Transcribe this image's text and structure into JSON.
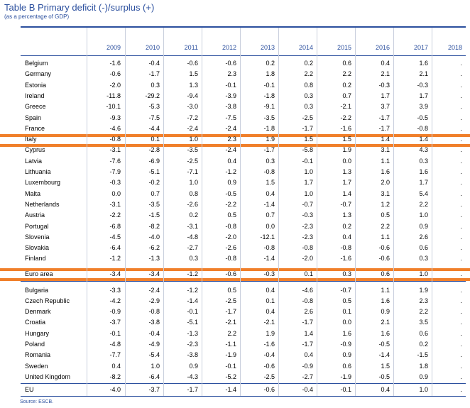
{
  "title": "Table B Primary deficit (-)/surplus (+)",
  "subtitle": "(as a percentage of GDP)",
  "source": "Source: ESCB.",
  "columns": [
    "2009",
    "2010",
    "2011",
    "2012",
    "2013",
    "2014",
    "2015",
    "2016",
    "2017",
    "2018"
  ],
  "groups": [
    {
      "rows": [
        {
          "label": "Belgium",
          "values": [
            "-1.6",
            "-0.4",
            "-0.6",
            "-0.6",
            "0.2",
            "0.2",
            "0.6",
            "0.4",
            "1.6",
            "."
          ]
        },
        {
          "label": "Germany",
          "values": [
            "-0.6",
            "-1.7",
            "1.5",
            "2.3",
            "1.8",
            "2.2",
            "2.2",
            "2.1",
            "2.1",
            "."
          ]
        },
        {
          "label": "Estonia",
          "values": [
            "-2.0",
            "0.3",
            "1.3",
            "-0.1",
            "-0.1",
            "0.8",
            "0.2",
            "-0.3",
            "-0.3",
            "."
          ]
        },
        {
          "label": "Ireland",
          "values": [
            "-11.8",
            "-29.2",
            "-9.4",
            "-3.9",
            "-1.8",
            "0.3",
            "0.7",
            "1.7",
            "1.7",
            "."
          ]
        },
        {
          "label": "Greece",
          "values": [
            "-10.1",
            "-5.3",
            "-3.0",
            "-3.8",
            "-9.1",
            "0.3",
            "-2.1",
            "3.7",
            "3.9",
            "."
          ]
        },
        {
          "label": "Spain",
          "values": [
            "-9.3",
            "-7.5",
            "-7.2",
            "-7.5",
            "-3.5",
            "-2.5",
            "-2.2",
            "-1.7",
            "-0.5",
            "."
          ]
        },
        {
          "label": "France",
          "values": [
            "-4.6",
            "-4.4",
            "-2.4",
            "-2.4",
            "-1.8",
            "-1.7",
            "-1.6",
            "-1.7",
            "-0.8",
            "."
          ]
        },
        {
          "label": "Italy",
          "highlight": true,
          "values": [
            "-0.8",
            "0.1",
            "1.0",
            "2.3",
            "1.9",
            "1.5",
            "1.5",
            "1.4",
            "1.4",
            "."
          ]
        },
        {
          "label": "Cyprus",
          "values": [
            "-3.1",
            "-2.8",
            "-3.5",
            "-2.4",
            "-1.7",
            "-5.8",
            "1.9",
            "3.1",
            "4.3",
            "."
          ]
        },
        {
          "label": "Latvia",
          "values": [
            "-7.6",
            "-6.9",
            "-2.5",
            "0.4",
            "0.3",
            "-0.1",
            "0.0",
            "1.1",
            "0.3",
            "."
          ]
        },
        {
          "label": "Lithuania",
          "values": [
            "-7.9",
            "-5.1",
            "-7.1",
            "-1.2",
            "-0.8",
            "1.0",
            "1.3",
            "1.6",
            "1.6",
            "."
          ]
        },
        {
          "label": "Luxembourg",
          "values": [
            "-0.3",
            "-0.2",
            "1.0",
            "0.9",
            "1.5",
            "1.7",
            "1.7",
            "2.0",
            "1.7",
            "."
          ]
        },
        {
          "label": "Malta",
          "values": [
            "0.0",
            "0.7",
            "0.8",
            "-0.5",
            "0.4",
            "1.0",
            "1.4",
            "3.1",
            "5.4",
            "."
          ]
        },
        {
          "label": "Netherlands",
          "values": [
            "-3.1",
            "-3.5",
            "-2.6",
            "-2.2",
            "-1.4",
            "-0.7",
            "-0.7",
            "1.2",
            "2.2",
            "."
          ]
        },
        {
          "label": "Austria",
          "values": [
            "-2.2",
            "-1.5",
            "0.2",
            "0.5",
            "0.7",
            "-0.3",
            "1.3",
            "0.5",
            "1.0",
            "."
          ]
        },
        {
          "label": "Portugal",
          "values": [
            "-6.8",
            "-8.2",
            "-3.1",
            "-0.8",
            "0.0",
            "-2.3",
            "0.2",
            "2.2",
            "0.9",
            "."
          ]
        },
        {
          "label": "Slovenia",
          "values": [
            "-4.5",
            "-4.0",
            "-4.8",
            "-2.0",
            "-12.1",
            "-2.3",
            "0.4",
            "1.1",
            "2.6",
            "."
          ]
        },
        {
          "label": "Slovakia",
          "values": [
            "-6.4",
            "-6.2",
            "-2.7",
            "-2.6",
            "-0.8",
            "-0.8",
            "-0.8",
            "-0.6",
            "0.6",
            "."
          ]
        },
        {
          "label": "Finland",
          "values": [
            "-1.2",
            "-1.3",
            "0.3",
            "-0.8",
            "-1.4",
            "-2.0",
            "-1.6",
            "-0.6",
            "0.3",
            "."
          ]
        }
      ]
    },
    {
      "rows": [
        {
          "label": "Euro area",
          "highlight": true,
          "values": [
            "-3.4",
            "-3.4",
            "-1.2",
            "-0.6",
            "-0.3",
            "0.1",
            "0.3",
            "0.6",
            "1.0",
            "."
          ]
        }
      ]
    },
    {
      "rows": [
        {
          "label": "Bulgaria",
          "values": [
            "-3.3",
            "-2.4",
            "-1.2",
            "0.5",
            "0.4",
            "-4.6",
            "-0.7",
            "1.1",
            "1.9",
            "."
          ]
        },
        {
          "label": "Czech Republic",
          "values": [
            "-4.2",
            "-2.9",
            "-1.4",
            "-2.5",
            "0.1",
            "-0.8",
            "0.5",
            "1.6",
            "2.3",
            "."
          ]
        },
        {
          "label": "Denmark",
          "values": [
            "-0.9",
            "-0.8",
            "-0.1",
            "-1.7",
            "0.4",
            "2.6",
            "0.1",
            "0.9",
            "2.2",
            "."
          ]
        },
        {
          "label": "Croatia",
          "values": [
            "-3.7",
            "-3.8",
            "-5.1",
            "-2.1",
            "-2.1",
            "-1.7",
            "0.0",
            "2.1",
            "3.5",
            "."
          ]
        },
        {
          "label": "Hungary",
          "values": [
            "-0.1",
            "-0.4",
            "-1.3",
            "2.2",
            "1.9",
            "1.4",
            "1.6",
            "1.6",
            "0.6",
            "."
          ]
        },
        {
          "label": "Poland",
          "values": [
            "-4.8",
            "-4.9",
            "-2.3",
            "-1.1",
            "-1.6",
            "-1.7",
            "-0.9",
            "-0.5",
            "0.2",
            "."
          ]
        },
        {
          "label": "Romania",
          "values": [
            "-7.7",
            "-5.4",
            "-3.8",
            "-1.9",
            "-0.4",
            "0.4",
            "0.9",
            "-1.4",
            "-1.5",
            "."
          ]
        },
        {
          "label": "Sweden",
          "values": [
            "0.4",
            "1.0",
            "0.9",
            "-0.1",
            "-0.6",
            "-0.9",
            "0.6",
            "1.5",
            "1.8",
            "."
          ]
        },
        {
          "label": "United Kingdom",
          "values": [
            "-8.2",
            "-6.4",
            "-4.3",
            "-5.2",
            "-2.5",
            "-2.7",
            "-1.9",
            "-0.5",
            "0.9",
            "."
          ]
        }
      ]
    },
    {
      "rows": [
        {
          "label": "EU",
          "values": [
            "-4.0",
            "-3.7",
            "-1.7",
            "-1.4",
            "-0.6",
            "-0.4",
            "-0.1",
            "0.4",
            "1.0",
            "."
          ]
        }
      ]
    }
  ],
  "colors": {
    "accent": "#2b4f9e",
    "highlight": "#f07f2a"
  }
}
